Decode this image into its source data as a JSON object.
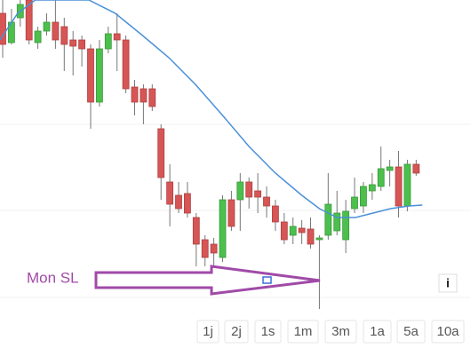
{
  "chart_data": {
    "type": "candlestick",
    "open": [
      385,
      352,
      380,
      400,
      352,
      365,
      375,
      370,
      355,
      355,
      345,
      285,
      345,
      362,
      355,
      302,
      300,
      300,
      255,
      195,
      180,
      182,
      155,
      130,
      125,
      110,
      175,
      175,
      195,
      185,
      178,
      168,
      150,
      135,
      143,
      142,
      130,
      135,
      140,
      130,
      165,
      168,
      185,
      190,
      208,
      212,
      168,
      215
    ],
    "high": [
      400,
      390,
      400,
      400,
      370,
      385,
      400,
      380,
      365,
      360,
      350,
      355,
      370,
      385,
      360,
      310,
      305,
      305,
      260,
      215,
      195,
      195,
      160,
      135,
      132,
      180,
      185,
      205,
      200,
      205,
      190,
      175,
      160,
      155,
      152,
      155,
      135,
      205,
      185,
      175,
      200,
      195,
      205,
      235,
      220,
      230,
      220,
      220
    ],
    "low": [
      335,
      350,
      370,
      350,
      345,
      360,
      345,
      320,
      315,
      325,
      255,
      280,
      340,
      320,
      295,
      270,
      260,
      275,
      175,
      145,
      160,
      155,
      100,
      100,
      100,
      105,
      140,
      140,
      165,
      160,
      155,
      140,
      125,
      125,
      125,
      120,
      52,
      130,
      135,
      115,
      160,
      160,
      175,
      185,
      190,
      155,
      162,
      202
    ],
    "close": [
      350,
      375,
      395,
      355,
      365,
      375,
      355,
      350,
      348,
      345,
      285,
      345,
      362,
      355,
      300,
      285,
      285,
      280,
      200,
      170,
      165,
      160,
      125,
      110,
      115,
      175,
      145,
      195,
      178,
      178,
      168,
      150,
      130,
      145,
      138,
      125,
      132,
      170,
      160,
      162,
      178,
      190,
      192,
      210,
      212,
      168,
      215,
      205
    ],
    "up_color": "#4cbf4c",
    "down_color": "#d65555",
    "ma": {
      "color": "#4a90d9",
      "x": [
        -0.3,
        1.7,
        3.7,
        9.8,
        12.8,
        15.9,
        18.9,
        21.9,
        25,
        28,
        31,
        34,
        36,
        38,
        40.1,
        42.1,
        44.1,
        46.2,
        47.7
      ],
      "values": [
        355,
        385,
        400,
        400,
        385,
        360,
        335,
        305,
        270,
        235,
        205,
        180,
        165,
        155,
        155,
        160,
        165,
        168,
        169
      ]
    },
    "ylim": [
      0,
      400
    ],
    "annotation": {
      "text": "Mon SL",
      "color": "#a04aa8"
    },
    "ranges": [
      "1j",
      "2j",
      "1s",
      "1m",
      "3m",
      "1a",
      "5a",
      "10a"
    ],
    "info": "i"
  }
}
